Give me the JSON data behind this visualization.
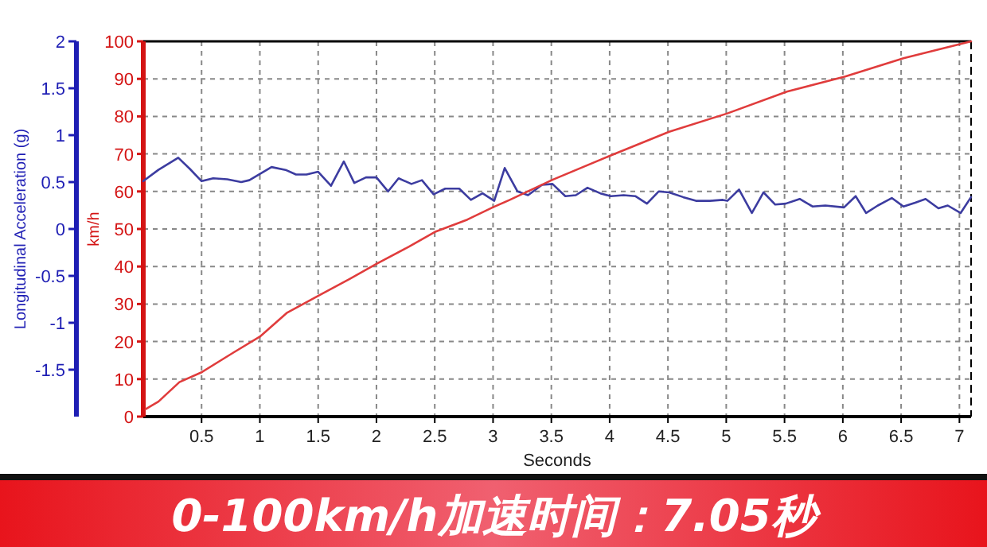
{
  "chart_data": {
    "type": "line",
    "title": "0-100km/h加速时间：7.05秒",
    "xlabel": "Seconds",
    "ylabel": "Longitudinal Acceleration (g)",
    "y2label": "km/h",
    "xlim": [
      0,
      7.1
    ],
    "xticks": [
      0.5,
      1,
      1.5,
      2,
      2.5,
      3,
      3.5,
      4,
      4.5,
      5,
      5.5,
      6,
      6.5,
      7
    ],
    "ylim": [
      -2,
      2
    ],
    "yticks": [
      -1.5,
      -1,
      -0.5,
      0,
      0.5,
      1,
      1.5,
      2
    ],
    "y2lim": [
      0,
      100
    ],
    "y2ticks": [
      0,
      10,
      20,
      30,
      40,
      50,
      60,
      70,
      80,
      90,
      100
    ],
    "grid": true,
    "line_style": "solid",
    "series": [
      {
        "color": "#3c3ca0",
        "x": [
          0,
          0.13,
          0.3,
          0.4,
          0.5,
          0.6,
          0.72,
          0.84,
          0.91,
          1.1,
          1.22,
          1.31,
          1.4,
          1.5,
          1.61,
          1.72,
          1.81,
          1.91,
          2.0,
          2.1,
          2.19,
          2.3,
          2.39,
          2.49,
          2.59,
          2.71,
          2.81,
          2.91,
          3.01,
          3.1,
          3.21,
          3.3,
          3.42,
          3.51,
          3.62,
          3.71,
          3.81,
          3.92,
          4.01,
          4.12,
          4.22,
          4.32,
          4.42,
          4.51,
          4.63,
          4.74,
          4.86,
          4.97,
          5.01,
          5.11,
          5.22,
          5.32,
          5.42,
          5.51,
          5.63,
          5.74,
          5.85,
          6.01,
          6.11,
          6.2,
          6.3,
          6.42,
          6.52,
          6.62,
          6.71,
          6.82,
          6.9,
          7.01,
          7.1
        ],
        "values": [
          0.51,
          0.63,
          0.76,
          0.64,
          0.51,
          0.54,
          0.53,
          0.5,
          0.52,
          0.66,
          0.63,
          0.58,
          0.58,
          0.61,
          0.46,
          0.72,
          0.49,
          0.55,
          0.55,
          0.4,
          0.54,
          0.48,
          0.52,
          0.37,
          0.43,
          0.43,
          0.31,
          0.38,
          0.3,
          0.65,
          0.4,
          0.36,
          0.47,
          0.48,
          0.35,
          0.36,
          0.44,
          0.38,
          0.35,
          0.36,
          0.35,
          0.27,
          0.4,
          0.39,
          0.34,
          0.3,
          0.3,
          0.31,
          0.3,
          0.42,
          0.17,
          0.39,
          0.26,
          0.27,
          0.32,
          0.24,
          0.25,
          0.23,
          0.35,
          0.17,
          0.25,
          0.33,
          0.24,
          0.28,
          0.32,
          0.22,
          0.25,
          0.17,
          0.34
        ]
      },
      {
        "axis": "y2",
        "color": "#e03c3c",
        "x": [
          0.02,
          0.13,
          0.31,
          0.5,
          0.77,
          1.0,
          1.23,
          1.5,
          1.77,
          2.0,
          2.28,
          2.5,
          2.78,
          3.0,
          3.14,
          3.51,
          4.01,
          4.51,
          5.01,
          5.52,
          6.02,
          6.52,
          7.1
        ],
        "values": [
          2,
          4,
          9.2,
          11.8,
          17,
          21.3,
          27.6,
          32.2,
          36.7,
          40.7,
          45.3,
          49.2,
          52.5,
          55.8,
          57.7,
          63.1,
          69.6,
          75.9,
          80.8,
          86.6,
          90.6,
          95.5,
          100
        ]
      }
    ]
  }
}
